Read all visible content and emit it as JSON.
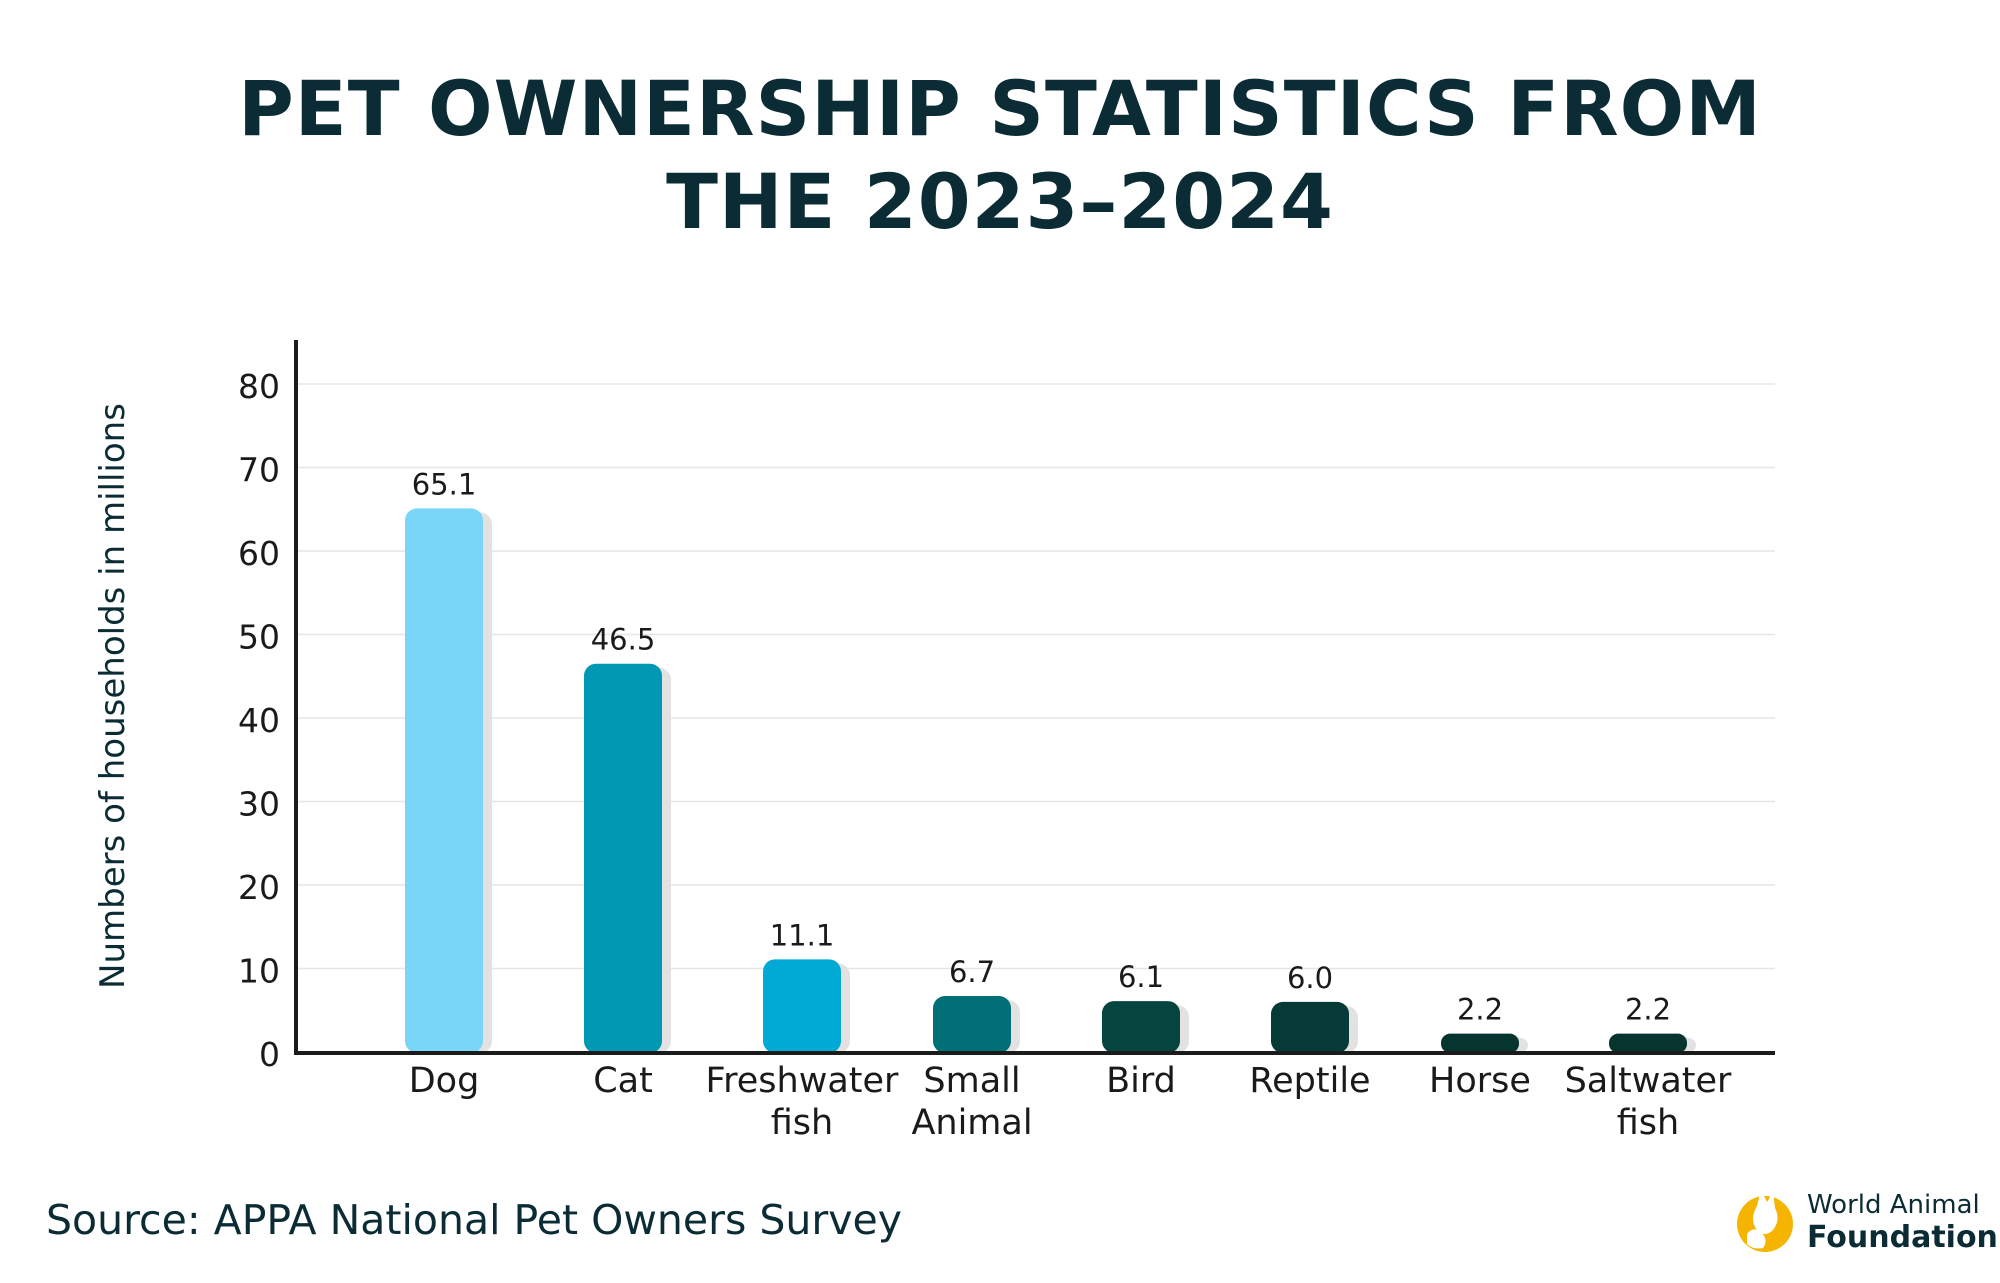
{
  "title_lines": [
    "PET OWNERSHIP STATISTICS FROM",
    "THE 2023–2024"
  ],
  "source": "Source: APPA National Pet Owners Survey",
  "logo": {
    "line1": "World Animal",
    "line2": "Foundation",
    "icon": "cat-dog-silhouette-icon",
    "color": "#f4b400"
  },
  "chart_data": {
    "type": "bar",
    "title": "PET OWNERSHIP STATISTICS FROM THE 2023–2024",
    "xlabel": "",
    "ylabel": "Numbers of households in millions",
    "ylim": [
      0,
      80
    ],
    "yticks": [
      0,
      10,
      20,
      30,
      40,
      50,
      60,
      70,
      80
    ],
    "grid": true,
    "categories": [
      [
        "Dog"
      ],
      [
        "Cat"
      ],
      [
        "Freshwater",
        "fish"
      ],
      [
        "Small",
        "Animal"
      ],
      [
        "Bird"
      ],
      [
        "Reptile"
      ],
      [
        "Horse"
      ],
      [
        "Saltwater",
        "fish"
      ]
    ],
    "values": [
      65.1,
      46.5,
      11.1,
      6.7,
      6.1,
      6.0,
      2.2,
      2.2
    ],
    "value_labels": [
      "65.1",
      "46.5",
      "11.1",
      "6.7",
      "6.1",
      "6.0",
      "2.2",
      "2.2"
    ],
    "colors": [
      "#7ad6f8",
      "#0098b3",
      "#00aad4",
      "#006f76",
      "#06453f",
      "#063a36",
      "#06342f",
      "#06342f"
    ]
  }
}
